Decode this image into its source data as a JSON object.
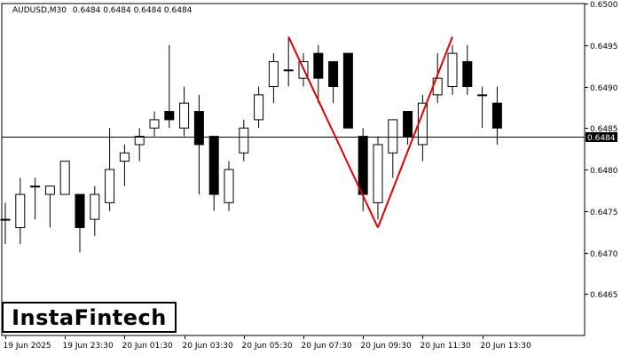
{
  "header": {
    "symbol": "AUDUSD,M30",
    "ohlc": "0.6484 0.6484 0.6484 0.6484"
  },
  "logo": {
    "text": "InstaFintech"
  },
  "colors": {
    "bull_body": "#ffffff",
    "bear_body": "#000000",
    "pattern_line": "#e00000",
    "price_line": "#000000",
    "price_label_bg": "#000000",
    "price_label_text": "#ffffff"
  },
  "chart_data": {
    "type": "candlestick",
    "ylim": [
      0.646,
      0.65
    ],
    "y_ticks": [
      "0.6500",
      "0.6495",
      "0.6490",
      "0.6485",
      "0.6480",
      "0.6475",
      "0.6470",
      "0.6465"
    ],
    "x_ticks": [
      {
        "index": 0,
        "label": "19 Jun 2025"
      },
      {
        "index": 4,
        "label": "19 Jun 23:30"
      },
      {
        "index": 8,
        "label": "20 Jun 01:30"
      },
      {
        "index": 12,
        "label": "20 Jun 03:30"
      },
      {
        "index": 16,
        "label": "20 Jun 05:30"
      },
      {
        "index": 20,
        "label": "20 Jun 07:30"
      },
      {
        "index": 24,
        "label": "20 Jun 09:30"
      },
      {
        "index": 28,
        "label": "20 Jun 11:30"
      },
      {
        "index": 32,
        "label": "20 Jun 13:30"
      }
    ],
    "candles": [
      {
        "o": 0.6474,
        "h": 0.6476,
        "l": 0.6471,
        "c": 0.6474
      },
      {
        "o": 0.6473,
        "h": 0.6479,
        "l": 0.6471,
        "c": 0.6477
      },
      {
        "o": 0.6478,
        "h": 0.6479,
        "l": 0.6474,
        "c": 0.6478
      },
      {
        "o": 0.6477,
        "h": 0.6478,
        "l": 0.6473,
        "c": 0.6478
      },
      {
        "o": 0.6477,
        "h": 0.6481,
        "l": 0.6477,
        "c": 0.6481
      },
      {
        "o": 0.6477,
        "h": 0.6477,
        "l": 0.647,
        "c": 0.6473
      },
      {
        "o": 0.6474,
        "h": 0.6478,
        "l": 0.6472,
        "c": 0.6477
      },
      {
        "o": 0.6476,
        "h": 0.6485,
        "l": 0.6475,
        "c": 0.648
      },
      {
        "o": 0.6481,
        "h": 0.6483,
        "l": 0.6478,
        "c": 0.6482
      },
      {
        "o": 0.6483,
        "h": 0.6485,
        "l": 0.6481,
        "c": 0.6484
      },
      {
        "o": 0.6485,
        "h": 0.6487,
        "l": 0.6484,
        "c": 0.6486
      },
      {
        "o": 0.6487,
        "h": 0.6495,
        "l": 0.6485,
        "c": 0.6486
      },
      {
        "o": 0.6485,
        "h": 0.649,
        "l": 0.6484,
        "c": 0.6488
      },
      {
        "o": 0.6487,
        "h": 0.6489,
        "l": 0.6477,
        "c": 0.6483
      },
      {
        "o": 0.6484,
        "h": 0.6484,
        "l": 0.6475,
        "c": 0.6477
      },
      {
        "o": 0.6476,
        "h": 0.6481,
        "l": 0.6475,
        "c": 0.648
      },
      {
        "o": 0.6482,
        "h": 0.6486,
        "l": 0.6481,
        "c": 0.6485
      },
      {
        "o": 0.6486,
        "h": 0.649,
        "l": 0.6485,
        "c": 0.6489
      },
      {
        "o": 0.649,
        "h": 0.6494,
        "l": 0.6488,
        "c": 0.6493
      },
      {
        "o": 0.6492,
        "h": 0.6496,
        "l": 0.649,
        "c": 0.6492
      },
      {
        "o": 0.6491,
        "h": 0.6494,
        "l": 0.649,
        "c": 0.6493
      },
      {
        "o": 0.6494,
        "h": 0.6495,
        "l": 0.6488,
        "c": 0.6491
      },
      {
        "o": 0.6493,
        "h": 0.6493,
        "l": 0.6488,
        "c": 0.649
      },
      {
        "o": 0.6494,
        "h": 0.6494,
        "l": 0.6485,
        "c": 0.6485
      },
      {
        "o": 0.6484,
        "h": 0.6485,
        "l": 0.6475,
        "c": 0.6477
      },
      {
        "o": 0.6476,
        "h": 0.6484,
        "l": 0.6474,
        "c": 0.6483
      },
      {
        "o": 0.6482,
        "h": 0.6486,
        "l": 0.6479,
        "c": 0.6486
      },
      {
        "o": 0.6487,
        "h": 0.6487,
        "l": 0.6483,
        "c": 0.6484
      },
      {
        "o": 0.6483,
        "h": 0.6489,
        "l": 0.6481,
        "c": 0.6488
      },
      {
        "o": 0.6489,
        "h": 0.6494,
        "l": 0.6488,
        "c": 0.6491
      },
      {
        "o": 0.649,
        "h": 0.6495,
        "l": 0.6489,
        "c": 0.6494
      },
      {
        "o": 0.6493,
        "h": 0.6495,
        "l": 0.6489,
        "c": 0.649
      },
      {
        "o": 0.6489,
        "h": 0.649,
        "l": 0.6485,
        "c": 0.6489
      },
      {
        "o": 0.6488,
        "h": 0.649,
        "l": 0.6483,
        "c": 0.6485
      }
    ],
    "current_price": 0.6484,
    "current_price_label": "0.6484",
    "pattern_lines": [
      {
        "i1": 19,
        "p1": 0.6496,
        "i2": 25,
        "p2": 0.6473
      },
      {
        "i1": 25,
        "p1": 0.6473,
        "i2": 30,
        "p2": 0.6496
      }
    ]
  }
}
